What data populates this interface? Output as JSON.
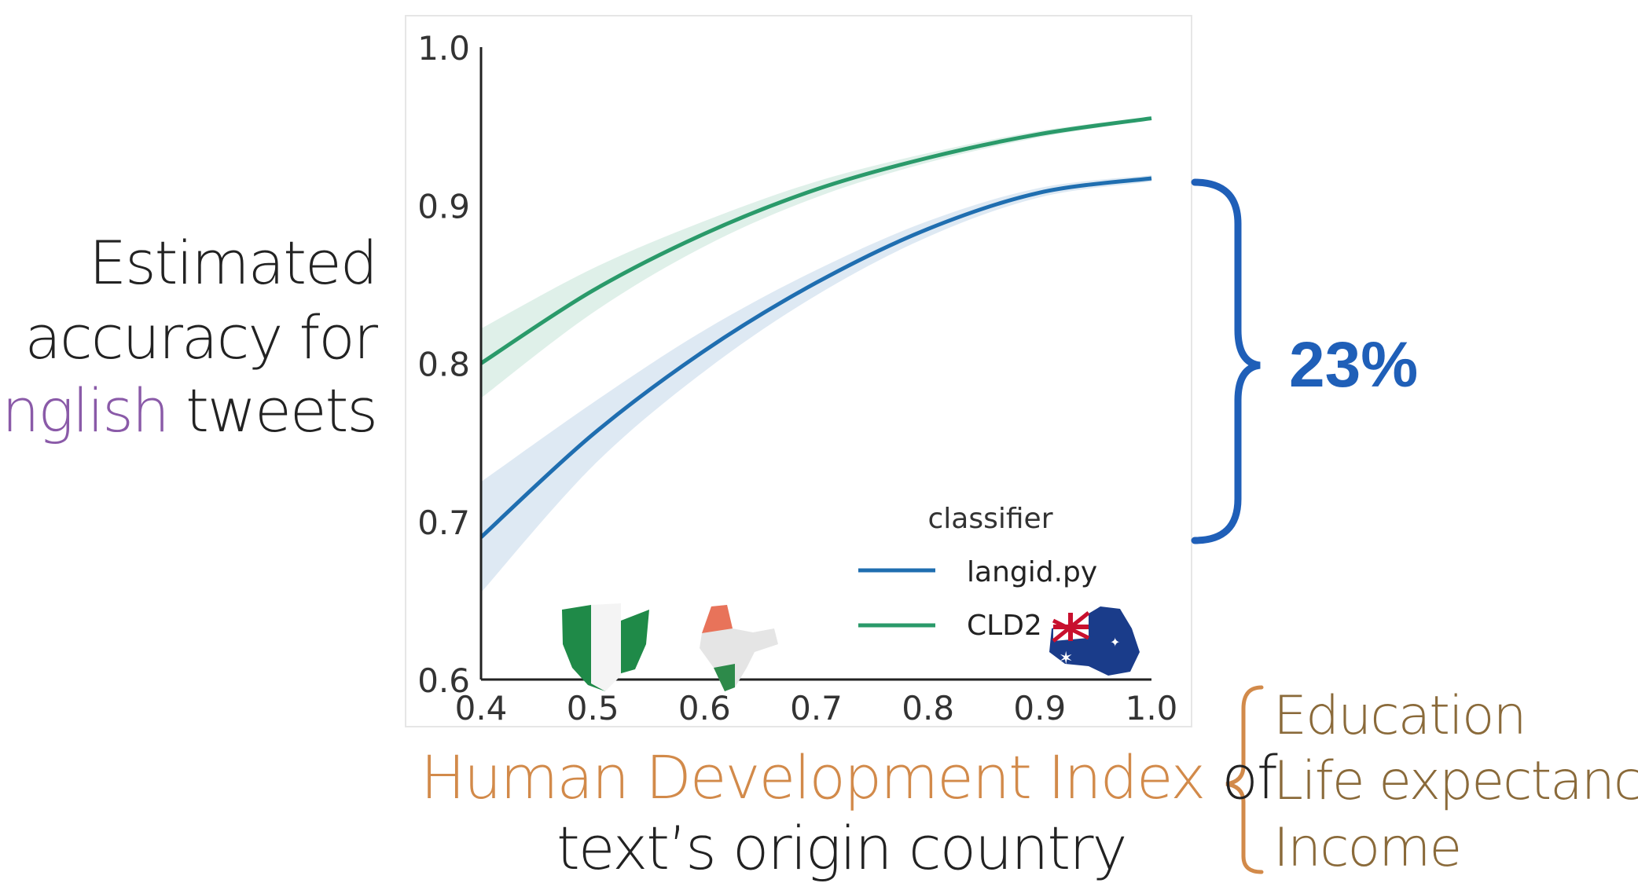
{
  "chart_data": {
    "type": "line",
    "ylabel": {
      "line1": "Estimated",
      "line2": "accuracy for",
      "line3_highlight": "English",
      "line3_rest": " tweets"
    },
    "xlabel": {
      "line1_highlight": "Human Development Index",
      "line1_rest": " of",
      "line2": "text’s origin country"
    },
    "xlim": [
      0.4,
      1.0
    ],
    "ylim": [
      0.6,
      1.0
    ],
    "xticks": [
      "0.4",
      "0.5",
      "0.6",
      "0.7",
      "0.8",
      "0.9",
      "1.0"
    ],
    "yticks": [
      "0.6",
      "0.7",
      "0.8",
      "0.9",
      "1.0"
    ],
    "legend": {
      "title": "classifier",
      "position": "lower-right"
    },
    "x": [
      0.4,
      0.5,
      0.6,
      0.7,
      0.8,
      0.9,
      1.0
    ],
    "series": [
      {
        "name": "langid.py",
        "color": "#1f6eb0",
        "values": [
          0.69,
          0.755,
          0.808,
          0.851,
          0.885,
          0.908,
          0.917
        ],
        "band_lower": [
          0.655,
          0.735,
          0.795,
          0.843,
          0.88,
          0.905,
          0.915
        ],
        "band_upper": [
          0.725,
          0.775,
          0.821,
          0.859,
          0.89,
          0.911,
          0.919
        ]
      },
      {
        "name": "CLD2",
        "color": "#2a9a6a",
        "values": [
          0.8,
          0.846,
          0.882,
          0.91,
          0.93,
          0.945,
          0.955
        ],
        "band_lower": [
          0.778,
          0.832,
          0.874,
          0.905,
          0.927,
          0.943,
          0.954
        ],
        "band_upper": [
          0.822,
          0.86,
          0.89,
          0.915,
          0.933,
          0.947,
          0.956
        ]
      }
    ]
  },
  "annotations": {
    "gap_label": "23%",
    "gap_color": "#1f5fb8",
    "hdi_components": [
      "Education",
      "Life expectancy",
      "Income"
    ],
    "hdi_color": "#d28a4a"
  },
  "flags": [
    "nigeria-map-icon",
    "india-map-icon",
    "australia-map-icon"
  ]
}
